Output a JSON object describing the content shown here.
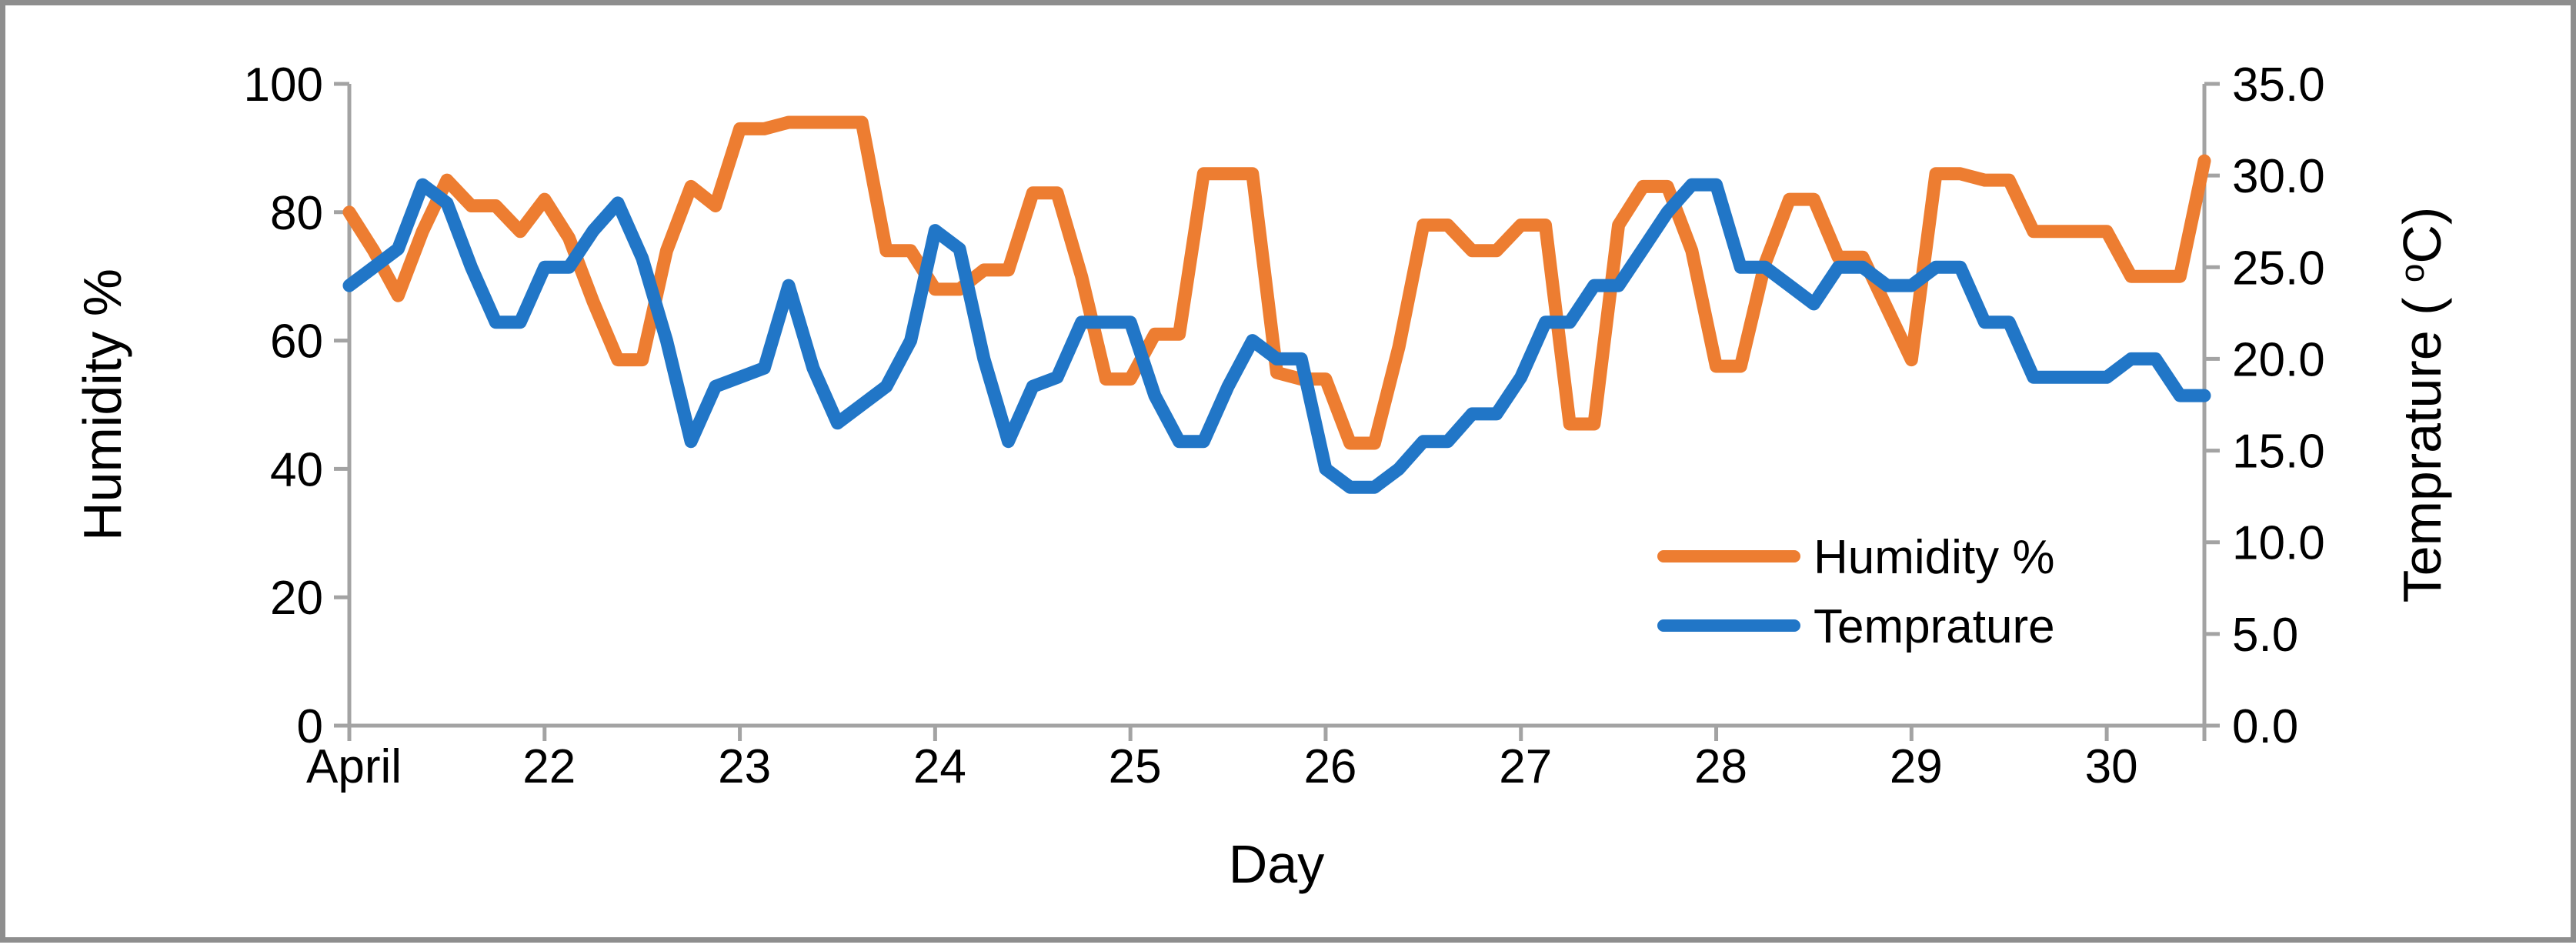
{
  "chart_data": {
    "type": "line",
    "title": "",
    "x_axis": {
      "label": "Day",
      "tick_labels": [
        "April",
        "22",
        "23",
        "24",
        "25",
        "26",
        "27",
        "28",
        "29",
        "30"
      ],
      "tick_day_values": [
        21,
        22,
        23,
        24,
        25,
        26,
        27,
        28,
        29,
        30
      ]
    },
    "y_left_axis": {
      "label": "Humidity %",
      "min": 0,
      "max": 100,
      "tick_labels": [
        "0",
        "20",
        "40",
        "60",
        "80",
        "100"
      ]
    },
    "y_right_axis": {
      "label_prefix": "Temprature ( ",
      "label_superscript": "o",
      "label_suffix": "C)",
      "min": 0,
      "max": 35,
      "tick_labels": [
        "0.0",
        "5.0",
        "10.0",
        "15.0",
        "20.0",
        "25.0",
        "30.0",
        "35.0"
      ]
    },
    "sampling": {
      "start_day": 21.0,
      "step_day": 0.125,
      "month": "April"
    },
    "series": [
      {
        "name": "Humidity %",
        "color": "#ED7D31",
        "axis": "left",
        "values": [
          80,
          74,
          67,
          77,
          85,
          81,
          81,
          77,
          82,
          76,
          66,
          57,
          57,
          74,
          84,
          81,
          93,
          93,
          94,
          94,
          94,
          94,
          74,
          74,
          68,
          68,
          71,
          71,
          83,
          83,
          70,
          54,
          54,
          61,
          61,
          86,
          86,
          86,
          55,
          54,
          54,
          44,
          44,
          59,
          78,
          78,
          74,
          74,
          78,
          78,
          47,
          47,
          78,
          84,
          84,
          74,
          56,
          56,
          72,
          82,
          82,
          73,
          73,
          65,
          57,
          86,
          86,
          85,
          85,
          77,
          77,
          77,
          77,
          70,
          70,
          70,
          88
        ]
      },
      {
        "name": "Temprature",
        "color": "#2176C7",
        "axis": "right",
        "values": [
          24,
          25,
          26,
          29.5,
          28.5,
          25,
          22,
          22,
          25,
          25,
          27,
          28.5,
          25.5,
          21,
          15.5,
          18.5,
          19,
          19.5,
          24,
          19.5,
          16.5,
          17.5,
          18.5,
          21,
          27,
          26,
          20,
          15.5,
          18.5,
          19,
          22,
          22,
          22,
          18,
          15.5,
          15.5,
          18.5,
          21,
          20,
          20,
          14,
          13,
          13,
          14,
          15.5,
          15.5,
          17,
          17,
          19,
          22,
          22,
          24,
          24,
          26,
          28,
          29.5,
          29.5,
          25,
          25,
          24,
          23,
          25,
          25,
          24,
          24,
          25,
          25,
          22,
          22,
          19,
          19,
          19,
          19,
          20,
          20,
          18,
          18
        ]
      }
    ],
    "legend_position": "inside-right-bottom",
    "grid": "off",
    "axis_color": "#A3A3A3"
  },
  "legend": {
    "items": [
      {
        "label": "Humidity %",
        "color": "#ED7D31"
      },
      {
        "label": "Temprature",
        "color": "#2176C7"
      }
    ]
  }
}
